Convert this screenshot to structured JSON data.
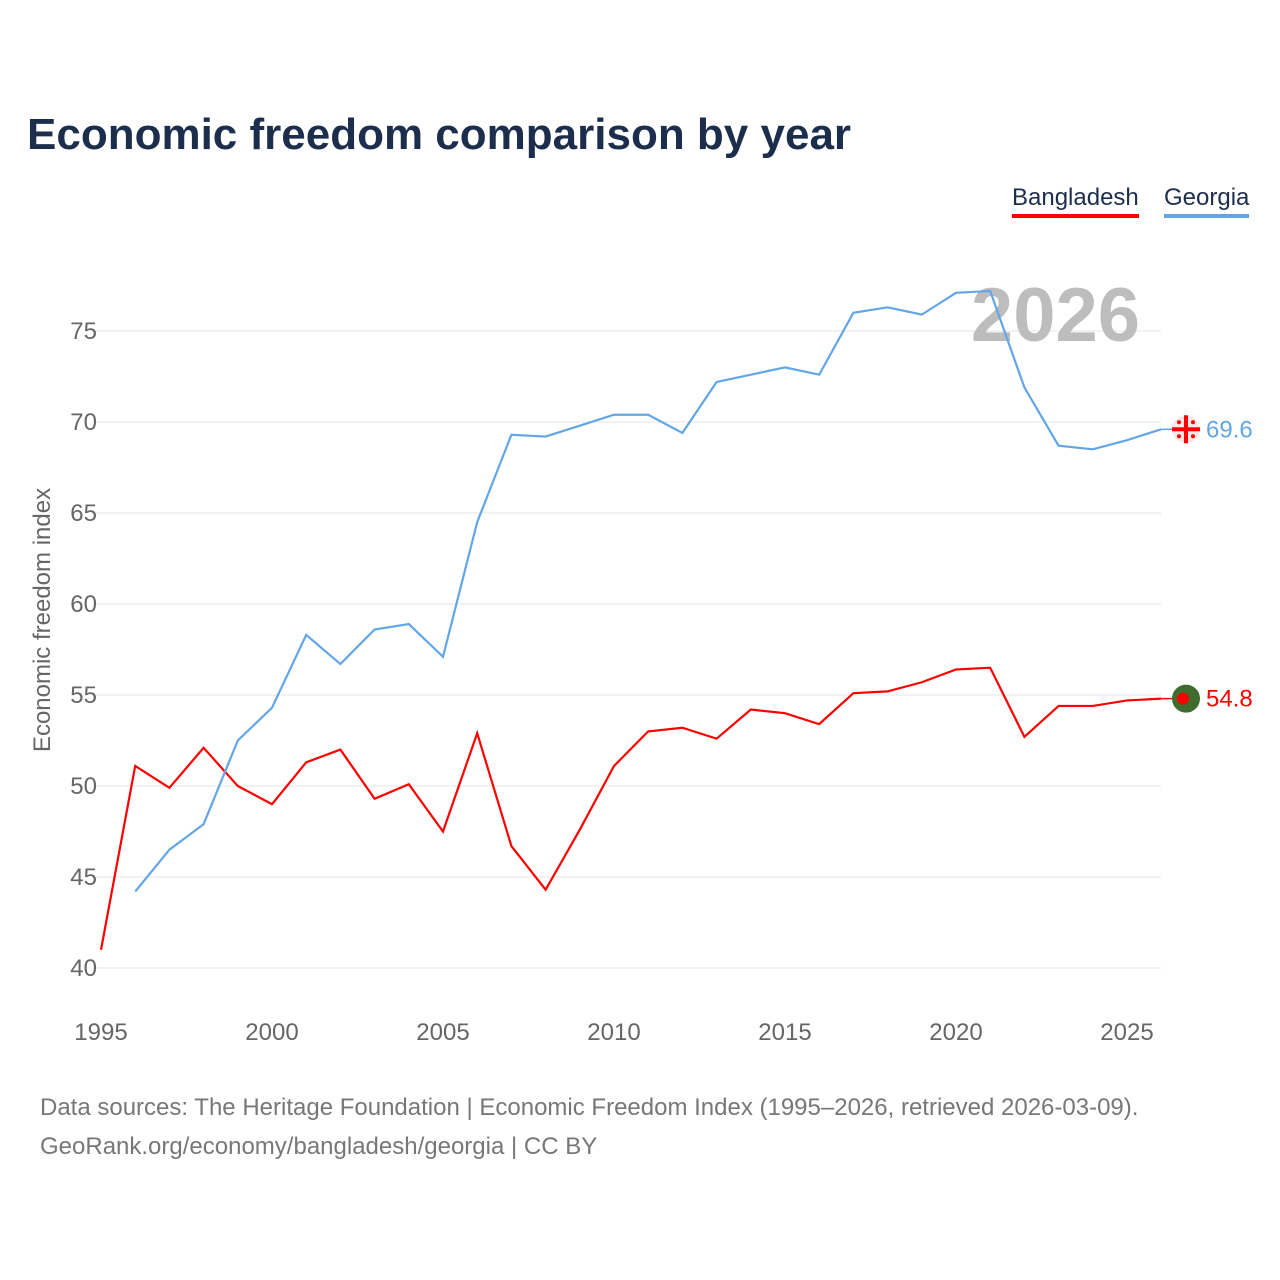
{
  "title": "Economic freedom comparison by year",
  "legend": [
    {
      "name": "Bangladesh",
      "color": "#ff0000"
    },
    {
      "name": "Georgia",
      "color": "#62a6e8"
    }
  ],
  "year_watermark": "2026",
  "footer": {
    "line1": "Data sources: The Heritage Foundation | Economic Freedom Index (1995–2026, retrieved 2026-03-09).",
    "line2": "GeoRank.org/economy/bangladesh/georgia | CC BY"
  },
  "chart_data": {
    "type": "line",
    "title": "Economic freedom comparison by year",
    "xlabel": "",
    "ylabel": "Economic freedom index",
    "xlim": [
      1995,
      2026
    ],
    "ylim": [
      40,
      77.5
    ],
    "xticks": [
      "1995",
      "2000",
      "2005",
      "2010",
      "2015",
      "2020",
      "2025"
    ],
    "yticks": [
      "40",
      "45",
      "50",
      "55",
      "60",
      "65",
      "70",
      "75"
    ],
    "grid": true,
    "legend_position": "top-right",
    "series": [
      {
        "name": "Bangladesh",
        "color": "#ff0000",
        "end_label": "54.8",
        "flag_icon": "bangladesh-flag-icon",
        "x": [
          1995,
          1996,
          1997,
          1998,
          1999,
          2000,
          2001,
          2002,
          2003,
          2004,
          2005,
          2006,
          2007,
          2008,
          2009,
          2010,
          2011,
          2012,
          2013,
          2014,
          2015,
          2016,
          2017,
          2018,
          2019,
          2020,
          2021,
          2022,
          2023,
          2024,
          2025,
          2026
        ],
        "values": [
          41.0,
          51.1,
          49.9,
          52.1,
          50.0,
          49.0,
          51.3,
          52.0,
          49.3,
          50.1,
          47.5,
          52.9,
          46.7,
          44.3,
          47.6,
          51.1,
          53.0,
          53.2,
          52.6,
          54.2,
          54.0,
          53.4,
          55.1,
          55.2,
          55.7,
          56.4,
          56.5,
          52.7,
          54.4,
          54.4,
          54.7,
          54.8
        ]
      },
      {
        "name": "Georgia",
        "color": "#62a6e8",
        "end_label": "69.6",
        "flag_icon": "georgia-flag-icon",
        "x": [
          1996,
          1997,
          1998,
          1999,
          2000,
          2001,
          2002,
          2003,
          2004,
          2005,
          2006,
          2007,
          2008,
          2009,
          2010,
          2011,
          2012,
          2013,
          2014,
          2015,
          2016,
          2017,
          2018,
          2019,
          2020,
          2021,
          2022,
          2023,
          2024,
          2025,
          2026
        ],
        "values": [
          44.2,
          46.5,
          47.9,
          52.5,
          54.3,
          58.3,
          56.7,
          58.6,
          58.9,
          57.1,
          64.5,
          69.3,
          69.2,
          69.8,
          70.4,
          70.4,
          69.4,
          72.2,
          72.6,
          73.0,
          72.6,
          76.0,
          76.3,
          75.9,
          77.1,
          77.2,
          71.9,
          68.7,
          68.5,
          69.0,
          69.6
        ]
      }
    ]
  }
}
